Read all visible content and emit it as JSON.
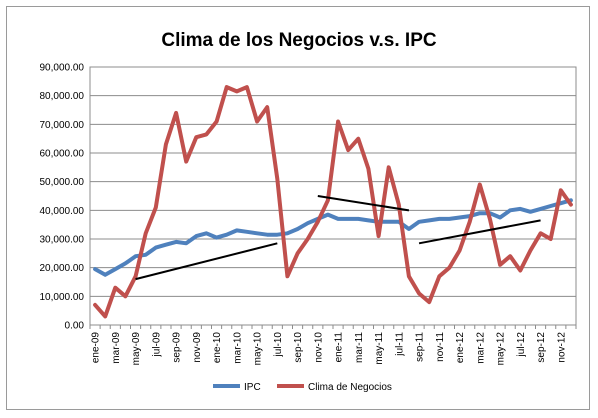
{
  "chart_data": {
    "type": "line",
    "title": "Clima de los Negocios v.s. IPC",
    "xlabel": "",
    "ylabel": "",
    "ylim": [
      0,
      90000
    ],
    "yticks": [
      "0.00",
      "10,000.00",
      "20,000.00",
      "30,000.00",
      "40,000.00",
      "50,000.00",
      "60,000.00",
      "70,000.00",
      "80,000.00",
      "90,000.00"
    ],
    "ytick_values": [
      0,
      10000,
      20000,
      30000,
      40000,
      50000,
      60000,
      70000,
      80000,
      90000
    ],
    "grid": true,
    "legend_position": "bottom",
    "categories": [
      "ene-09",
      "feb-09",
      "mar-09",
      "abr-09",
      "may-09",
      "jun-09",
      "jul-09",
      "ago-09",
      "sep-09",
      "oct-09",
      "nov-09",
      "dic-09",
      "ene-10",
      "feb-10",
      "mar-10",
      "abr-10",
      "may-10",
      "jun-10",
      "jul-10",
      "ago-10",
      "sep-10",
      "oct-10",
      "nov-10",
      "dic-10",
      "ene-11",
      "feb-11",
      "mar-11",
      "abr-11",
      "may-11",
      "jun-11",
      "jul-11",
      "ago-11",
      "sep-11",
      "oct-11",
      "nov-11",
      "dic-11",
      "ene-12",
      "feb-12",
      "mar-12",
      "abr-12",
      "may-12",
      "jun-12",
      "jul-12",
      "ago-12",
      "sep-12",
      "oct-12",
      "nov-12",
      "dic-12"
    ],
    "shown_tick_labels": [
      "ene-09",
      "mar-09",
      "may-09",
      "jul-09",
      "sep-09",
      "nov-09",
      "ene-10",
      "mar-10",
      "may-10",
      "jul-10",
      "sep-10",
      "nov-10",
      "ene-11",
      "mar-11",
      "may-11",
      "jul-11",
      "sep-11",
      "nov-11",
      "ene-12",
      "mar-12",
      "may-12",
      "jul-12",
      "sep-12",
      "nov-12"
    ],
    "series": [
      {
        "name": "IPC",
        "color": "#4f81bd",
        "values": [
          19500,
          17500,
          19500,
          21500,
          24000,
          24500,
          27000,
          28000,
          29000,
          28500,
          31000,
          32000,
          30500,
          31500,
          33000,
          32500,
          32000,
          31500,
          31500,
          32000,
          33500,
          35500,
          37000,
          38500,
          37000,
          37000,
          37000,
          36500,
          36000,
          36000,
          36000,
          33500,
          36000,
          36500,
          37000,
          37000,
          37500,
          38000,
          39000,
          39000,
          37500,
          40000,
          40500,
          39500,
          40500,
          41500,
          42500,
          43500
        ]
      },
      {
        "name": "Clima de Negocios",
        "color": "#c0504d",
        "values": [
          7000,
          3000,
          13000,
          10000,
          17000,
          32000,
          41000,
          63000,
          74000,
          57000,
          65500,
          66500,
          71000,
          83000,
          81500,
          83000,
          71000,
          76000,
          51000,
          17000,
          25000,
          30000,
          36000,
          43500,
          71000,
          61000,
          65000,
          54500,
          31000,
          55000,
          42000,
          17000,
          11000,
          8000,
          17000,
          20000,
          26000,
          36000,
          49000,
          37000,
          21000,
          24000,
          19000,
          26000,
          32000,
          30000,
          47000,
          42000
        ]
      }
    ],
    "annotations": [
      {
        "type": "trend-line",
        "x": [
          "may-09",
          "jul-10"
        ],
        "y": [
          16000,
          28500
        ]
      },
      {
        "type": "trend-line",
        "x": [
          "nov-10",
          "ago-11"
        ],
        "y": [
          45000,
          40000
        ]
      },
      {
        "type": "trend-line",
        "x": [
          "sep-11",
          "sep-12"
        ],
        "y": [
          28500,
          36500
        ]
      }
    ]
  }
}
